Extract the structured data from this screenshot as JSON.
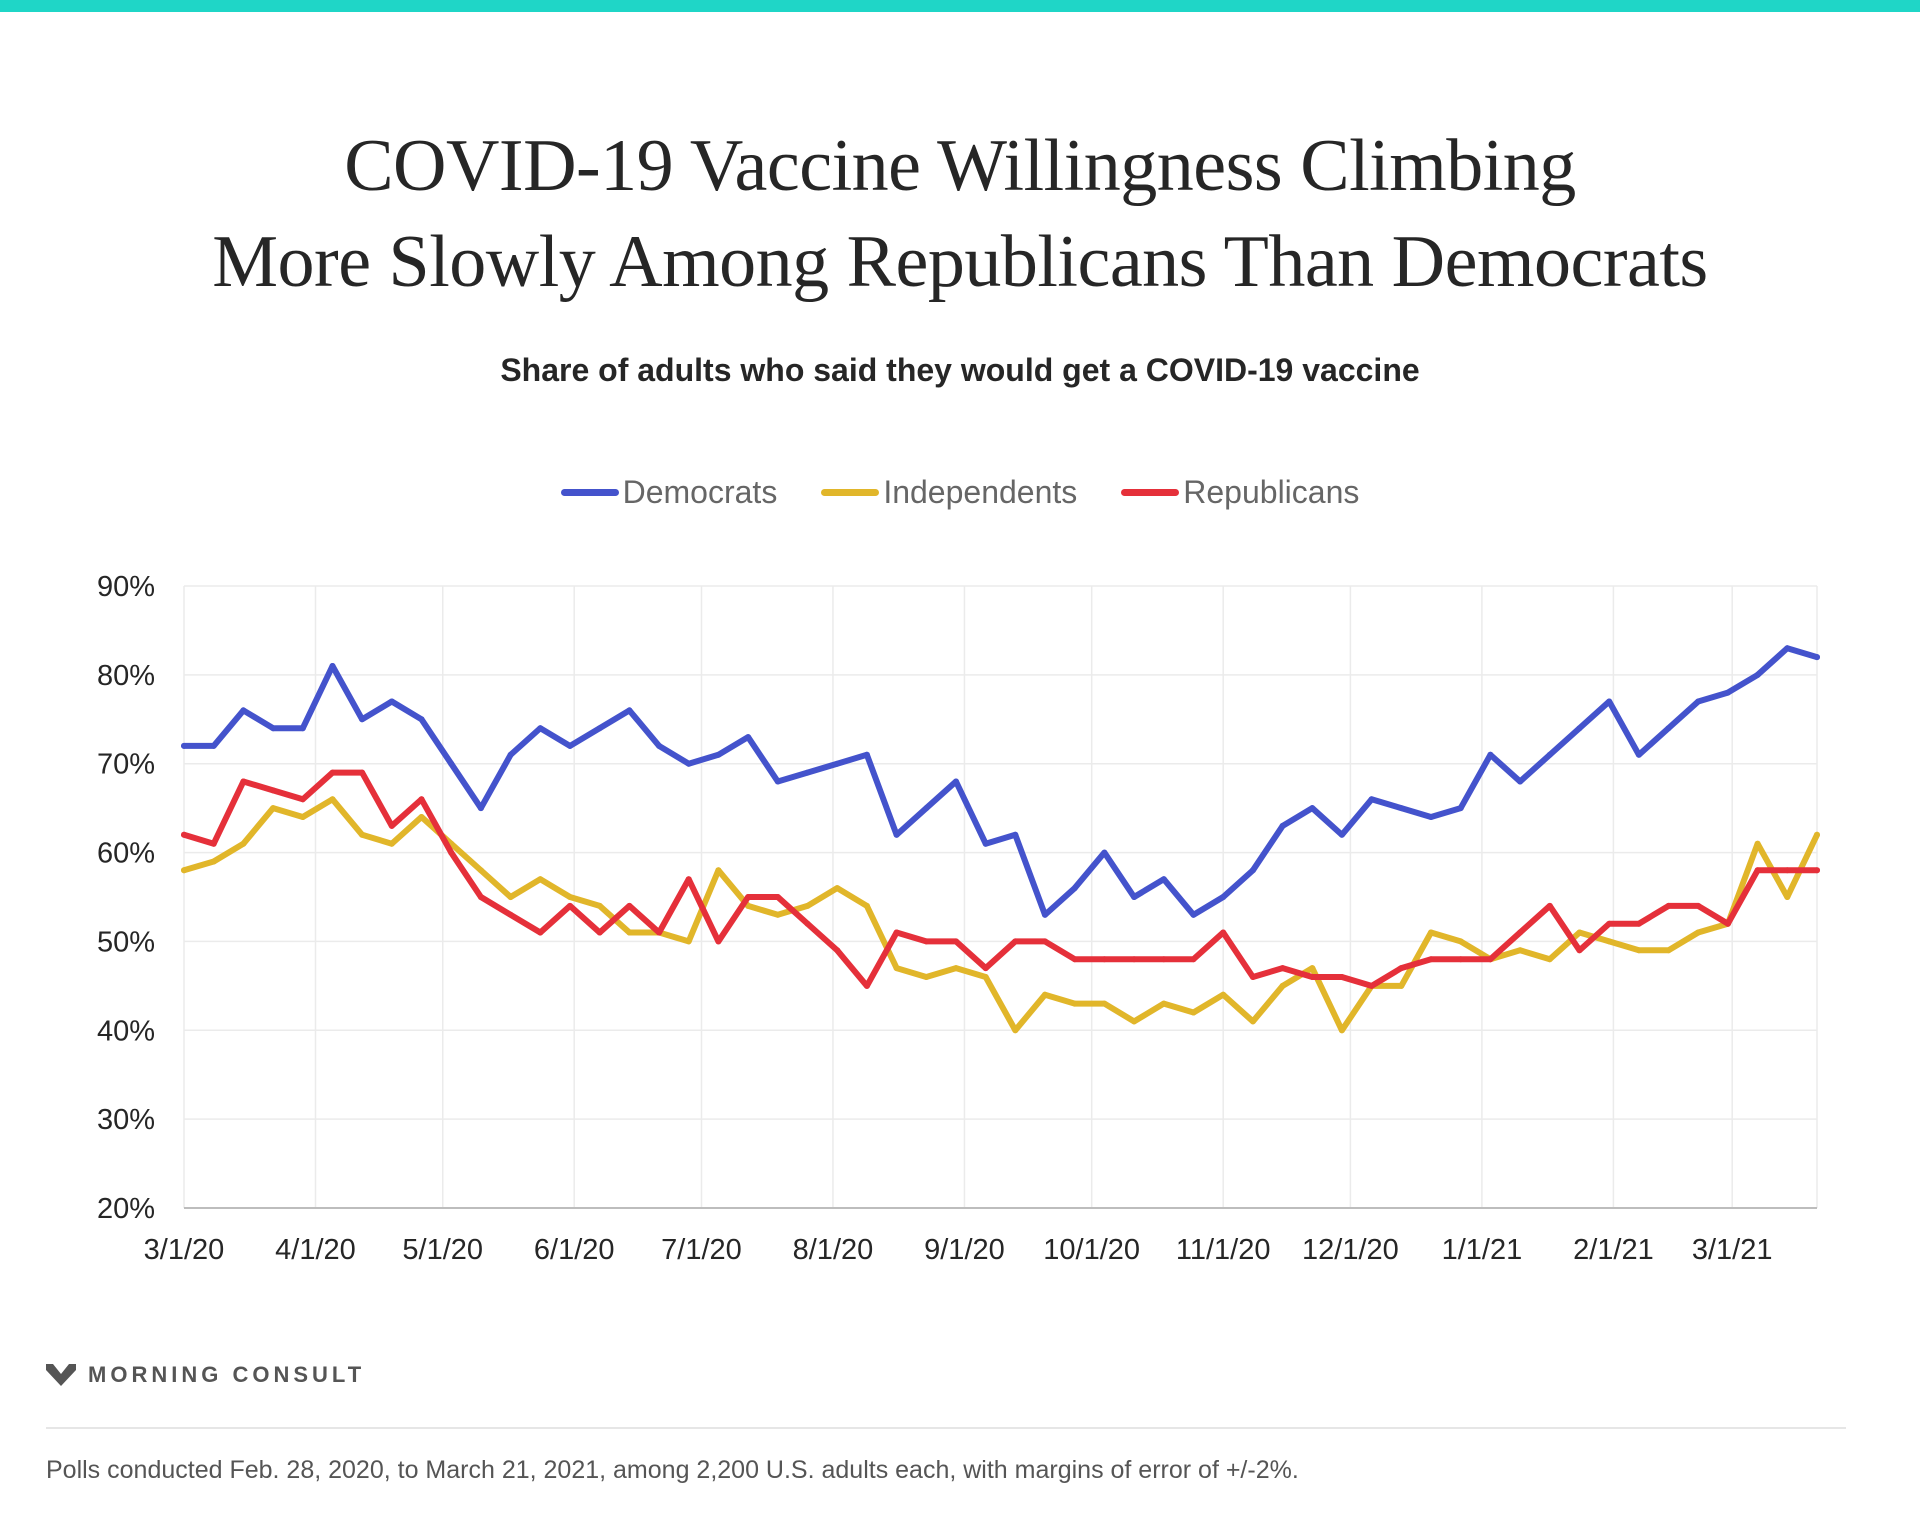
{
  "title": {
    "line1": "COVID-19 Vaccine Willingness Climbing",
    "line2": "More Slowly Among Republicans Than Democrats"
  },
  "subtitle": "Share of adults who said they would get a COVID-19 vaccine",
  "brand": "MORNING CONSULT",
  "footnote": "Polls conducted Feb. 28, 2020, to March 21, 2021, among 2,200 U.S. adults each, with margins of error of +/-2%.",
  "colors": {
    "accent_bar": "#1fd6c7",
    "democrats": "#4453cc",
    "independents": "#e1b62a",
    "republicans": "#e5303a"
  },
  "chart_data": {
    "type": "line",
    "title": "Share of adults who said they would get a COVID-19 vaccine",
    "xlabel": "",
    "ylabel": "",
    "ylim": [
      20,
      90
    ],
    "y_ticks": [
      "20%",
      "30%",
      "40%",
      "50%",
      "60%",
      "70%",
      "80%",
      "90%"
    ],
    "x_ticks": [
      "3/1/20",
      "4/1/20",
      "5/1/20",
      "6/1/20",
      "7/1/20",
      "8/1/20",
      "9/1/20",
      "10/1/20",
      "11/1/20",
      "12/1/20",
      "1/1/21",
      "2/1/21",
      "3/1/21"
    ],
    "grid": true,
    "legend_position": "top-center",
    "x": [
      "2020-03-01",
      "2020-03-08",
      "2020-03-15",
      "2020-03-22",
      "2020-03-29",
      "2020-04-05",
      "2020-04-12",
      "2020-04-19",
      "2020-04-26",
      "2020-05-03",
      "2020-05-10",
      "2020-05-17",
      "2020-05-24",
      "2020-05-31",
      "2020-06-07",
      "2020-06-14",
      "2020-06-21",
      "2020-06-28",
      "2020-07-05",
      "2020-07-12",
      "2020-07-19",
      "2020-07-26",
      "2020-08-02",
      "2020-08-09",
      "2020-08-16",
      "2020-08-23",
      "2020-08-30",
      "2020-09-06",
      "2020-09-13",
      "2020-09-20",
      "2020-09-27",
      "2020-10-04",
      "2020-10-11",
      "2020-10-18",
      "2020-10-25",
      "2020-11-01",
      "2020-11-08",
      "2020-11-15",
      "2020-11-22",
      "2020-11-29",
      "2020-12-06",
      "2020-12-13",
      "2020-12-20",
      "2020-12-27",
      "2021-01-03",
      "2021-01-10",
      "2021-01-17",
      "2021-01-24",
      "2021-01-31",
      "2021-02-07",
      "2021-02-14",
      "2021-02-21",
      "2021-02-28",
      "2021-03-07",
      "2021-03-14",
      "2021-03-21"
    ],
    "series": [
      {
        "name": "Democrats",
        "values": [
          72,
          72,
          76,
          74,
          74,
          81,
          75,
          77,
          75,
          70,
          65,
          71,
          74,
          72,
          74,
          76,
          72,
          70,
          71,
          73,
          68,
          69,
          70,
          71,
          62,
          65,
          68,
          61,
          62,
          53,
          56,
          60,
          55,
          57,
          53,
          55,
          58,
          63,
          65,
          62,
          66,
          65,
          64,
          65,
          71,
          68,
          71,
          74,
          77,
          71,
          74,
          77,
          78,
          80,
          83,
          82
        ]
      },
      {
        "name": "Independents",
        "values": [
          58,
          59,
          61,
          65,
          64,
          66,
          62,
          61,
          64,
          61,
          58,
          55,
          57,
          55,
          54,
          51,
          51,
          50,
          58,
          54,
          53,
          54,
          56,
          54,
          47,
          46,
          47,
          46,
          40,
          44,
          43,
          43,
          41,
          43,
          42,
          44,
          41,
          45,
          47,
          40,
          45,
          45,
          51,
          50,
          48,
          49,
          48,
          51,
          50,
          49,
          49,
          51,
          52,
          61,
          55,
          62
        ]
      },
      {
        "name": "Republicans",
        "values": [
          62,
          61,
          68,
          67,
          66,
          69,
          69,
          63,
          66,
          60,
          55,
          53,
          51,
          54,
          51,
          54,
          51,
          57,
          50,
          55,
          55,
          52,
          49,
          45,
          51,
          50,
          50,
          47,
          50,
          50,
          48,
          48,
          48,
          48,
          48,
          51,
          46,
          47,
          46,
          46,
          45,
          47,
          48,
          48,
          48,
          51,
          54,
          49,
          52,
          52,
          54,
          54,
          52,
          58,
          58,
          58
        ]
      }
    ]
  }
}
